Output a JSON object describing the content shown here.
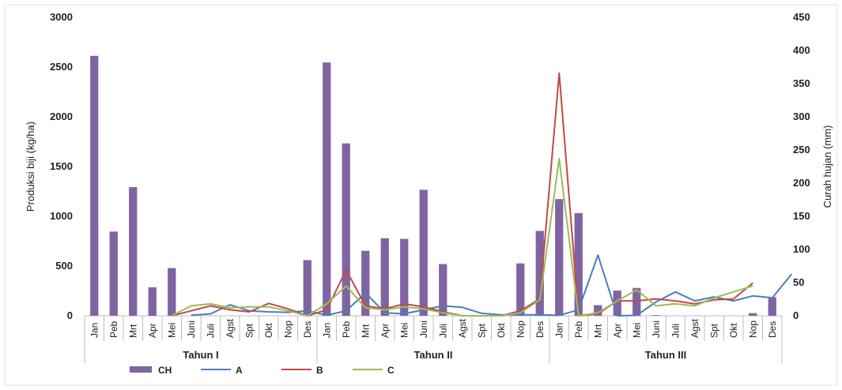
{
  "chart_data": {
    "type": "bar+line",
    "title": "",
    "ylabel": "Produksi biji (kg/ha)",
    "y2label": "Curah hujan (mm)",
    "ylim": [
      0,
      3000
    ],
    "y2lim": [
      0,
      450
    ],
    "yticks": [
      "0",
      "500",
      "1000",
      "1500",
      "2000",
      "2500",
      "3000"
    ],
    "y2ticks": [
      "0",
      "50",
      "100",
      "150",
      "200",
      "250",
      "300",
      "350",
      "400",
      "450"
    ],
    "categories": [
      "Jan",
      "Peb",
      "Mrt",
      "Apr",
      "Mei",
      "Juni",
      "Juli",
      "Agst",
      "Spt",
      "Okt",
      "Nop",
      "Des",
      "Jan",
      "Peb",
      "Mrt",
      "Apr",
      "Mei",
      "Juni",
      "Juli",
      "Agst",
      "Spt",
      "Okt",
      "Nop",
      "Des",
      "Jan",
      "Peb",
      "Mrt",
      "Apr",
      "Mei",
      "Juni",
      "Juli",
      "Agst",
      "Spt",
      "Okt",
      "Nop",
      "Des"
    ],
    "groups": [
      {
        "label": "Tahun I",
        "start": 0,
        "end": 11
      },
      {
        "label": "Tahun II",
        "start": 12,
        "end": 23
      },
      {
        "label": "Tahun III",
        "start": 24,
        "end": 35
      }
    ],
    "bar_series": {
      "name": "CH",
      "axis": "y2",
      "color": "#8064a2",
      "values": [
        392,
        127,
        194,
        43,
        72,
        0,
        0,
        0,
        0,
        0,
        0,
        84,
        382,
        260,
        98,
        117,
        116,
        190,
        78,
        0,
        0,
        0,
        79,
        128,
        176,
        155,
        16,
        38,
        42,
        1,
        0,
        0,
        0,
        0,
        4,
        28
      ]
    },
    "line_series": [
      {
        "name": "A",
        "color": "#4a7ebb",
        "start": 5,
        "values": [
          5,
          20,
          110,
          50,
          40,
          35,
          50,
          5,
          50,
          230,
          30,
          20,
          60,
          100,
          85,
          25,
          10,
          10,
          10,
          5,
          60,
          610,
          0,
          5,
          140,
          240,
          150,
          190,
          150,
          200,
          180,
          420
        ]
      },
      {
        "name": "B",
        "color": "#be4b48",
        "start": 4,
        "values": [
          0,
          50,
          100,
          60,
          40,
          125,
          70,
          0,
          60,
          460,
          100,
          70,
          120,
          90,
          40,
          0,
          0,
          0,
          50,
          170,
          2440,
          0,
          20,
          150,
          150,
          170,
          150,
          120,
          160,
          170,
          330
        ]
      },
      {
        "name": "C",
        "color": "#9bbb59",
        "start": 4,
        "values": [
          0,
          100,
          120,
          80,
          90,
          90,
          50,
          0,
          120,
          300,
          80,
          60,
          90,
          70,
          30,
          0,
          0,
          0,
          30,
          160,
          1580,
          0,
          30,
          150,
          260,
          100,
          120,
          100,
          180,
          240,
          300
        ]
      }
    ],
    "legend": [
      "CH",
      "A",
      "B",
      "C"
    ],
    "legend_position": "bottom",
    "grid": false
  }
}
